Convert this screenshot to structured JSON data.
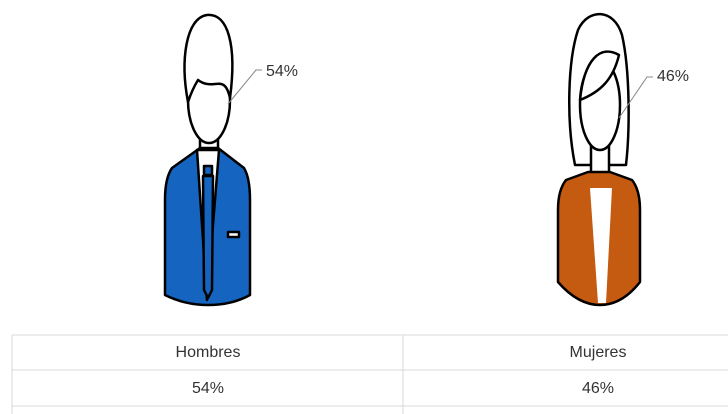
{
  "chart_data": {
    "type": "pictogram",
    "categories": [
      "Hombres",
      "Mujeres"
    ],
    "values": [
      54,
      46
    ],
    "value_labels": [
      "54%",
      "46%"
    ],
    "colors": [
      "#1565c0",
      "#c55a11"
    ]
  }
}
